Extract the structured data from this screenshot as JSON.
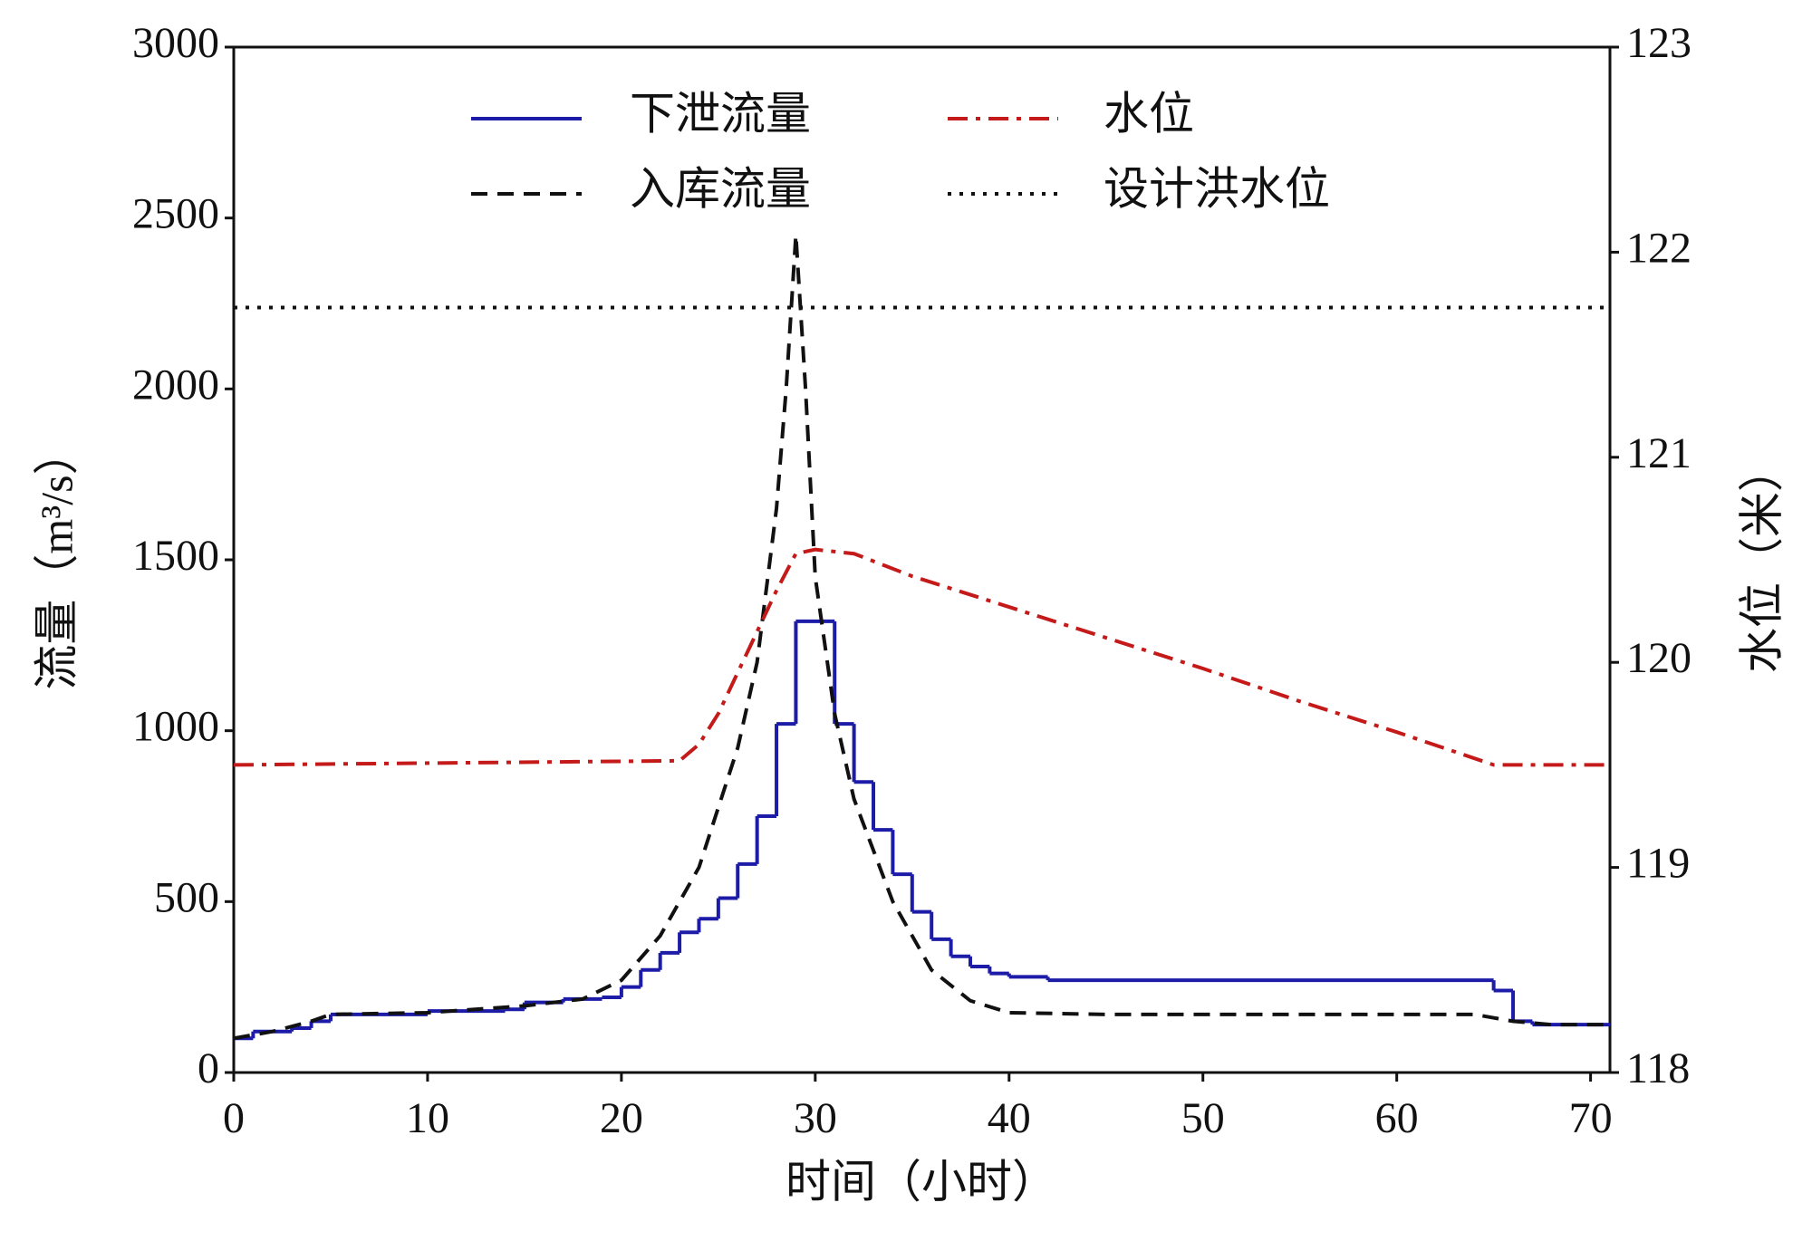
{
  "chart_data": {
    "type": "line",
    "xlabel": "时间（小时）",
    "ylabel": "流量（m³/s）",
    "y2label": "水位（米）",
    "xlim": [
      0,
      71
    ],
    "xticks": [
      0,
      10,
      20,
      30,
      40,
      50,
      60,
      70
    ],
    "ylim": [
      0,
      3000
    ],
    "yticks": [
      0,
      500,
      1000,
      1500,
      2000,
      2500,
      3000
    ],
    "y2lim": [
      118,
      123
    ],
    "y2ticks": [
      118,
      119,
      120,
      121,
      122,
      123
    ],
    "legend": "upper-center",
    "series": [
      {
        "name": "下泄流量",
        "color": "#1c1ca8",
        "linestyle": "solid",
        "drawstyle": "steps-post",
        "x": [
          0,
          1,
          3,
          4,
          5,
          10,
          14,
          15,
          17,
          19,
          20,
          21,
          22,
          23,
          24,
          25,
          26,
          27,
          28,
          29,
          31,
          32,
          33,
          34,
          35,
          36,
          37,
          38,
          39,
          40,
          42,
          65,
          66,
          67
        ],
        "values": [
          100,
          120,
          130,
          150,
          170,
          180,
          185,
          205,
          215,
          220,
          250,
          300,
          350,
          410,
          450,
          510,
          610,
          750,
          1020,
          1320,
          1020,
          850,
          710,
          580,
          470,
          390,
          340,
          310,
          290,
          280,
          270,
          240,
          150,
          140
        ]
      },
      {
        "name": "入库流量",
        "color": "#111111",
        "linestyle": "dashed",
        "x": [
          0,
          2,
          4,
          5,
          10,
          15,
          18,
          20,
          22,
          24,
          26,
          27,
          28,
          28.5,
          29,
          29.5,
          30,
          31,
          32,
          34,
          36,
          38,
          40,
          45,
          55,
          64,
          66,
          68,
          71
        ],
        "values": [
          100,
          120,
          150,
          170,
          175,
          195,
          215,
          270,
          400,
          600,
          950,
          1200,
          1650,
          2000,
          2450,
          2000,
          1450,
          1050,
          800,
          500,
          300,
          210,
          175,
          170,
          170,
          170,
          150,
          140,
          140
        ]
      },
      {
        "name": "水位",
        "color": "#c41a1a",
        "linestyle": "dashdot",
        "axis": "y2",
        "x": [
          0,
          23,
          24,
          25,
          26,
          27,
          28,
          29,
          30,
          32,
          35,
          40,
          45,
          50,
          55,
          60,
          65,
          71
        ],
        "values": [
          119.5,
          119.52,
          119.6,
          119.75,
          119.95,
          120.15,
          120.35,
          120.53,
          120.55,
          120.53,
          120.42,
          120.27,
          120.12,
          119.97,
          119.81,
          119.66,
          119.5,
          119.5
        ]
      },
      {
        "name": "设计洪水位",
        "color": "#111111",
        "linestyle": "dotted",
        "axis": "y2",
        "x": [
          0,
          71
        ],
        "values": [
          121.73,
          121.73
        ]
      }
    ]
  }
}
